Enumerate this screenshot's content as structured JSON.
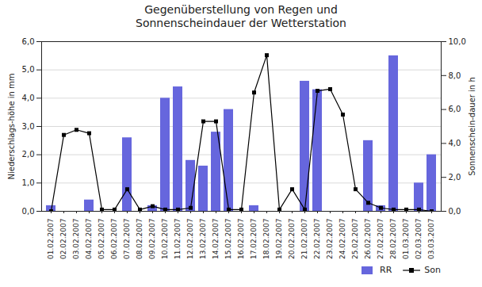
{
  "chart_data": {
    "type": "bar",
    "title": "Gegenüberstellung von Regen und\nSonnenscheindauer der Wetterstation",
    "categories": [
      "01.02.2007",
      "02.02.2007",
      "03.02.2007",
      "04.02.2007",
      "05.02.2007",
      "06.02.2007",
      "07.02.2007",
      "08.02.2007",
      "09.02.2007",
      "10.02.2007",
      "11.02.2007",
      "12.02.2007",
      "13.02.2007",
      "14.02.2007",
      "15.02.2007",
      "16.02.2007",
      "17.02.2007",
      "18.02.2007",
      "19.02.2007",
      "20.02.2007",
      "21.02.2007",
      "22.02.2007",
      "23.02.2007",
      "24.02.2007",
      "25.02.2007",
      "26.02.2007",
      "27.02.2007",
      "28.02.2007",
      "01.03.2007",
      "02.03.2007",
      "03.03.2007"
    ],
    "series": [
      {
        "name": "RR",
        "type": "bar",
        "color": "#6666dd",
        "values": [
          0.2,
          0.0,
          0.0,
          0.4,
          0.0,
          0.0,
          2.6,
          0.0,
          0.2,
          4.0,
          4.4,
          1.8,
          1.6,
          2.8,
          3.6,
          0.0,
          0.2,
          0.0,
          0.0,
          0.0,
          4.6,
          4.3,
          0.0,
          0.0,
          0.0,
          2.5,
          0.2,
          5.5,
          0.0,
          1.0,
          2.0
        ]
      },
      {
        "name": "Son",
        "type": "line",
        "axis": "y2",
        "color": "#000000",
        "marker": "square",
        "values": [
          0.0,
          4.5,
          4.8,
          4.6,
          0.1,
          0.1,
          1.3,
          0.1,
          0.3,
          0.1,
          0.1,
          0.2,
          5.3,
          5.3,
          0.1,
          0.1,
          7.0,
          9.2,
          0.1,
          1.3,
          0.1,
          7.1,
          7.2,
          5.7,
          1.3,
          0.5,
          0.2,
          0.1,
          0.1,
          0.1,
          0.0
        ]
      }
    ],
    "ylabel": "Niederschlags-höhe in mm",
    "y2label": "Sonnenschein-dauer in h",
    "ylim": [
      0.0,
      6.0
    ],
    "yticks": [
      {
        "value": 0,
        "label": "0,0"
      },
      {
        "value": 1,
        "label": "1,0"
      },
      {
        "value": 2,
        "label": "2,0"
      },
      {
        "value": 3,
        "label": "3,0"
      },
      {
        "value": 4,
        "label": "4,0"
      },
      {
        "value": 5,
        "label": "5,0"
      },
      {
        "value": 6,
        "label": "6,0"
      }
    ],
    "y2lim": [
      0.0,
      10.0
    ],
    "y2ticks": [
      {
        "value": 0,
        "label": "0,0"
      },
      {
        "value": 2,
        "label": "2,0"
      },
      {
        "value": 4,
        "label": "4,0"
      },
      {
        "value": 6,
        "label": "6,0"
      },
      {
        "value": 8,
        "label": "8,0"
      },
      {
        "value": 10,
        "label": "10,0"
      }
    ],
    "grid": true,
    "legend": "lower right"
  }
}
